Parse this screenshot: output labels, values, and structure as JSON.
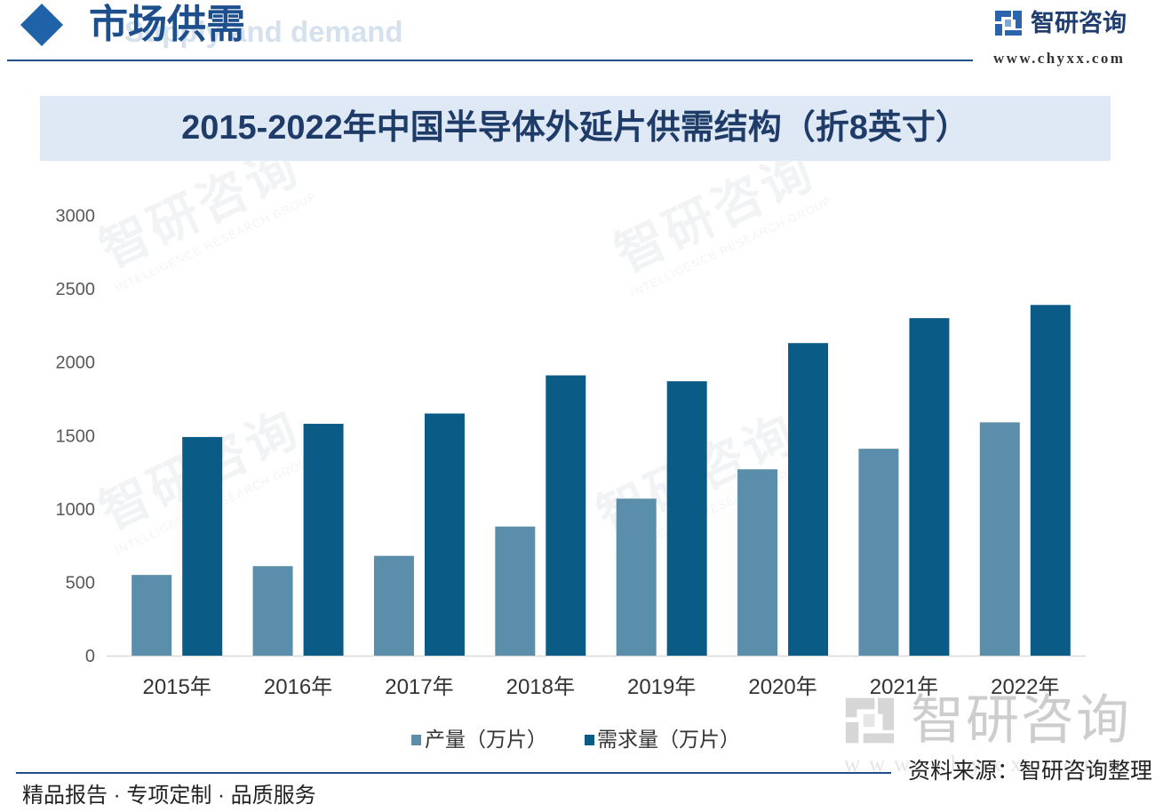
{
  "header": {
    "title": "市场供需",
    "subtitle_en": "Supply and demand",
    "brand_name": "智研咨询",
    "brand_url": "www.chyxx.com"
  },
  "chart_data": {
    "type": "bar",
    "title": "2015-2022年中国半导体外延片供需结构（折8英寸）",
    "xlabel": "",
    "ylabel": "",
    "categories": [
      "2015年",
      "2016年",
      "2017年",
      "2018年",
      "2019年",
      "2020年",
      "2021年",
      "2022年"
    ],
    "series": [
      {
        "name": "产量（万片）",
        "color": "#5b8eaa",
        "values": [
          550,
          610,
          680,
          880,
          1070,
          1270,
          1410,
          1590
        ]
      },
      {
        "name": "需求量（万片）",
        "color": "#0b5b87",
        "values": [
          1490,
          1580,
          1650,
          1910,
          1870,
          2130,
          2300,
          2390
        ]
      }
    ],
    "ylim": [
      0,
      3000
    ],
    "yticks": [
      0,
      500,
      1000,
      1500,
      2000,
      2500,
      3000
    ],
    "grid": false,
    "legend": "bottom-center"
  },
  "footer": {
    "tagline": "精品报告 · 专项定制 · 品质服务",
    "source": "资料来源：智研咨询整理"
  },
  "watermark": {
    "brand": "智研咨询",
    "tagline": "INTELLIGENCE RESEARCH GROUP",
    "url": "www.chyxx.com"
  },
  "colors": {
    "accent": "#1c4f8c",
    "banner_bg": "#dfe9f5",
    "title_text": "#1f3c68"
  }
}
